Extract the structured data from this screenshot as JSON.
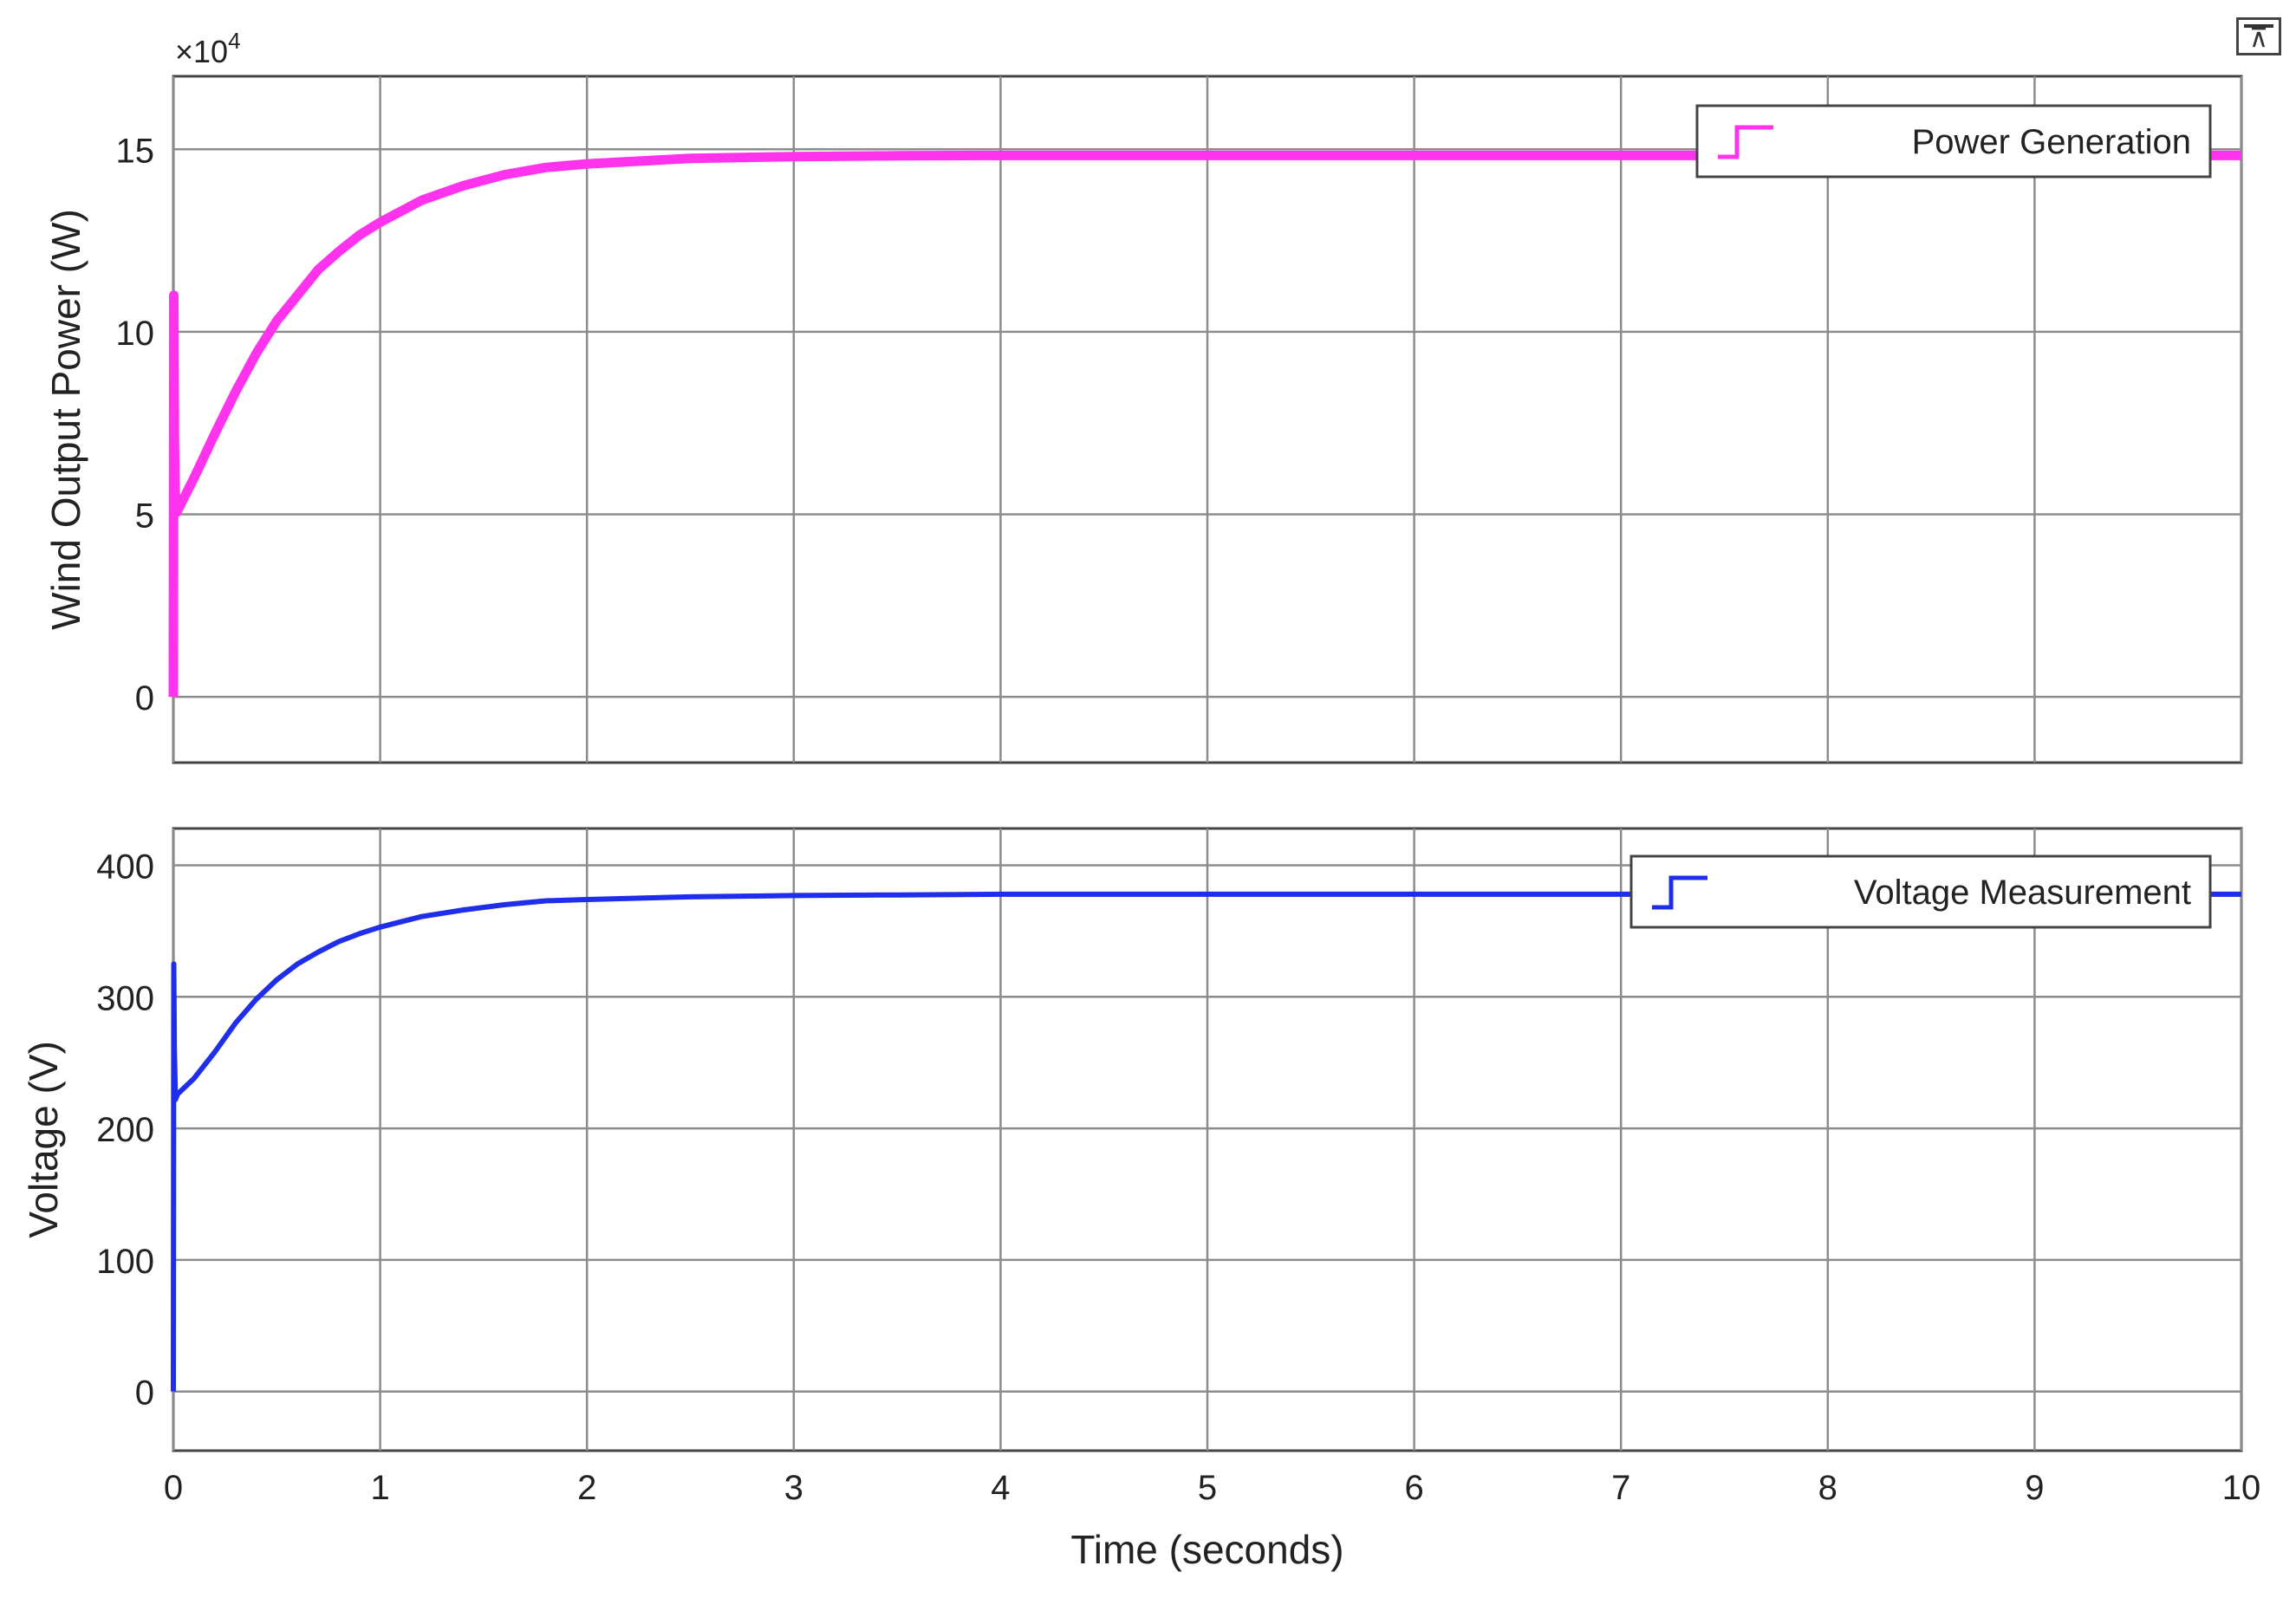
{
  "toolbar": {
    "undock_icon": "undock-icon",
    "undock_glyph": "⊼"
  },
  "chart_data": [
    {
      "type": "line",
      "title": "",
      "xlabel": "",
      "ylabel": "Wind Output Power (W)",
      "y_exponent_label": "×10",
      "y_exponent_power": "4",
      "xlim": [
        0,
        10
      ],
      "ylim": [
        -1.8,
        17.0
      ],
      "y_scale": 10000,
      "yticks": [
        0,
        5,
        10,
        15
      ],
      "ytick_labels": [
        "0",
        "5",
        "10",
        "15"
      ],
      "xticks": [
        0,
        1,
        2,
        3,
        4,
        5,
        6,
        7,
        8,
        9,
        10
      ],
      "xtick_labels": [],
      "grid": true,
      "legend": {
        "position": "top-right",
        "entries": [
          "Power Generation"
        ]
      },
      "series": [
        {
          "name": "Power Generation",
          "color": "#ff33ee",
          "x": [
            0,
            0.002,
            0.005,
            0.01,
            0.015,
            0.02,
            0.1,
            0.2,
            0.3,
            0.4,
            0.5,
            0.6,
            0.7,
            0.8,
            0.9,
            1.0,
            1.2,
            1.4,
            1.6,
            1.8,
            2.0,
            2.5,
            3.0,
            3.5,
            4,
            5,
            6,
            7,
            8,
            9,
            10
          ],
          "y": [
            0,
            11.0,
            7.0,
            5.2,
            5.05,
            5.1,
            6.0,
            7.2,
            8.35,
            9.4,
            10.3,
            11.0,
            11.7,
            12.2,
            12.65,
            13.0,
            13.6,
            14.0,
            14.3,
            14.5,
            14.6,
            14.75,
            14.8,
            14.82,
            14.83,
            14.83,
            14.83,
            14.83,
            14.83,
            14.83,
            14.83
          ]
        }
      ]
    },
    {
      "type": "line",
      "title": "",
      "xlabel": "Time (seconds)",
      "ylabel": "Voltage (V)",
      "xlim": [
        0,
        10
      ],
      "ylim": [
        -45,
        428
      ],
      "yticks": [
        0,
        100,
        200,
        300,
        400
      ],
      "ytick_labels": [
        "0",
        "100",
        "200",
        "300",
        "400"
      ],
      "xticks": [
        0,
        1,
        2,
        3,
        4,
        5,
        6,
        7,
        8,
        9,
        10
      ],
      "xtick_labels": [
        "0",
        "1",
        "2",
        "3",
        "4",
        "5",
        "6",
        "7",
        "8",
        "9",
        "10"
      ],
      "grid": true,
      "legend": {
        "position": "top-right",
        "entries": [
          "Voltage Measurement"
        ]
      },
      "series": [
        {
          "name": "Voltage Measurement",
          "color": "#1f2eea",
          "x": [
            0,
            0.002,
            0.005,
            0.01,
            0.015,
            0.02,
            0.1,
            0.2,
            0.3,
            0.4,
            0.5,
            0.6,
            0.7,
            0.8,
            0.9,
            1.0,
            1.2,
            1.4,
            1.6,
            1.8,
            2.0,
            2.5,
            3.0,
            3.5,
            4,
            5,
            6,
            7,
            8,
            9,
            10
          ],
          "y": [
            0,
            325,
            260,
            222,
            224,
            226,
            238,
            258,
            280,
            298,
            313,
            325,
            334,
            342,
            348,
            353,
            361,
            366,
            370,
            373,
            374,
            376,
            377,
            377.5,
            378,
            378,
            378,
            378,
            378,
            378,
            378
          ]
        }
      ]
    }
  ]
}
